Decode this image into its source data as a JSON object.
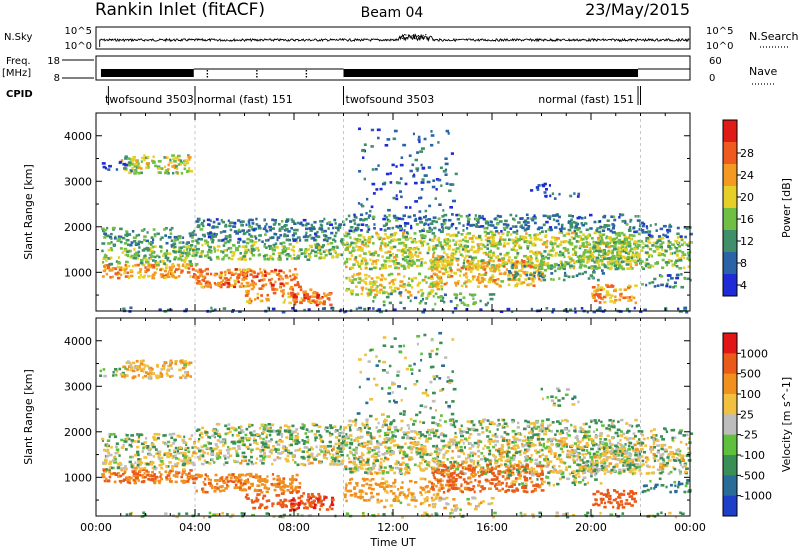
{
  "header": {
    "title": "Rankin Inlet (fitACF)",
    "beam": "Beam 04",
    "date": "23/May/2015"
  },
  "top_panels": {
    "nsky_label": "N.Sky",
    "nsearch_label": "N.Search",
    "nsky_ticks": [
      "10^5",
      "10^0"
    ],
    "nsearch_ticks": [
      "10^5",
      "10^0"
    ],
    "freq_label_1": "Freq.",
    "freq_label_2": "[MHz]",
    "freq_ticks": [
      "18",
      "8"
    ],
    "nave_label": "Nave",
    "nave_ticks": [
      "60",
      "0"
    ],
    "cpid_label": "CPID",
    "programs": [
      {
        "name": "twofsound 3503",
        "start": "00:30",
        "end": "04:00"
      },
      {
        "name": "normal (fast) 151",
        "start": "04:00",
        "end": "10:00"
      },
      {
        "name": "twofsound 3503",
        "start": "10:00",
        "end": "22:00"
      },
      {
        "name": "normal (fast) 151",
        "start": "22:00",
        "end": "24:00"
      }
    ]
  },
  "chart_data": [
    {
      "type": "heatmap",
      "quantity": "Power",
      "xlabel": "Time UT",
      "ylabel": "Slant Range [km]",
      "colorbar_label": "Power [dB]",
      "x_ticks": [
        "00:00",
        "04:00",
        "08:00",
        "12:00",
        "16:00",
        "20:00",
        "00:00"
      ],
      "y_ticks": [
        1000,
        2000,
        3000,
        4000
      ],
      "ylim": [
        150,
        4500
      ],
      "colorbar_ticks": [
        4,
        8,
        12,
        16,
        20,
        24,
        28
      ],
      "colorbar_colors": [
        "#1f2bd6",
        "#2a63a6",
        "#3f8f6a",
        "#6fbf45",
        "#e7cf2a",
        "#f49a22",
        "#ef5a1e",
        "#df1b16"
      ]
    },
    {
      "type": "heatmap",
      "quantity": "Velocity",
      "xlabel": "Time UT",
      "ylabel": "Slant Range [km]",
      "colorbar_label": "Velocity [m s^-1]",
      "x_ticks": [
        "00:00",
        "04:00",
        "08:00",
        "12:00",
        "16:00",
        "20:00",
        "00:00"
      ],
      "y_ticks": [
        1000,
        2000,
        3000,
        4000
      ],
      "ylim": [
        150,
        4500
      ],
      "colorbar_ticks": [
        "1000",
        "500",
        "100",
        "25",
        "-25",
        "-100",
        "-500",
        "-1000"
      ],
      "colorbar_colors": [
        "#1e3fc8",
        "#2a6c98",
        "#3a8f56",
        "#5fc03e",
        "#bdbdbd",
        "#f2c040",
        "#f0901e",
        "#ea5a18",
        "#e21616"
      ]
    }
  ]
}
